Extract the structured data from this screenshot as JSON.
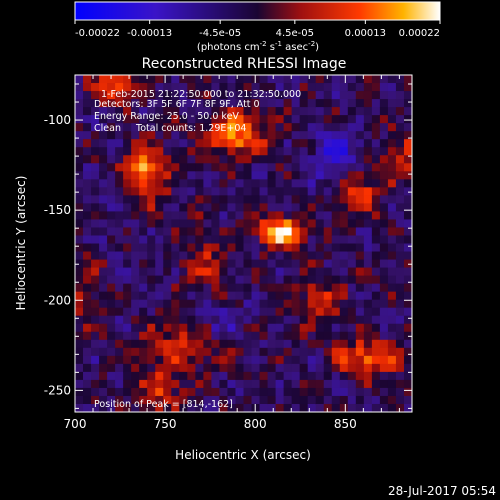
{
  "chart_data": {
    "type": "heatmap",
    "title": "Reconstructed RHESSI Image",
    "xlabel": "Heliocentric X (arcsec)",
    "ylabel": "Heliocentric Y (arcsec)",
    "xlim": [
      700,
      887
    ],
    "ylim": [
      -262,
      -75
    ],
    "x_ticks": [
      700,
      750,
      800,
      850
    ],
    "y_ticks": [
      -100,
      -150,
      -200,
      -250
    ],
    "colorbar": {
      "ticks": [
        "-0.00022",
        "-0.00013",
        "-4.5e-05",
        "4.5e-05",
        "0.00013",
        "0.00022"
      ],
      "range": [
        -0.00022,
        0.00022
      ],
      "unit_prefix": "(photons cm",
      "unit_exp1": "-2",
      "unit_mid": " s",
      "unit_exp2": "-1",
      "unit_mid2": " asec",
      "unit_exp3": "-2",
      "unit_suffix": ")"
    },
    "annotations": [
      "1-Feb-2015 21:22:50.000 to 21:32:50.000",
      "Detectors: 3F 5F 6F 7F 8F 9F, Att 0",
      "Energy Range: 25.0 - 50.0 keV",
      "Clean     Total counts: 1.29E+04"
    ],
    "peak_label": "Position of Peak = [814,-162]",
    "peak": [
      814,
      -162
    ],
    "sources": [
      {
        "x": 814,
        "y": -162,
        "amp": 0.00022,
        "sx": 9,
        "sy": 6
      },
      {
        "x": 738,
        "y": -130,
        "amp": 0.00019,
        "sx": 9,
        "sy": 11
      },
      {
        "x": 790,
        "y": -108,
        "amp": 0.00016,
        "sx": 12,
        "sy": 9
      },
      {
        "x": 722,
        "y": -80,
        "amp": 0.00015,
        "sx": 9,
        "sy": 7
      },
      {
        "x": 862,
        "y": -232,
        "amp": 0.00016,
        "sx": 12,
        "sy": 7
      },
      {
        "x": 858,
        "y": -140,
        "amp": 0.00012,
        "sx": 9,
        "sy": 9
      },
      {
        "x": 760,
        "y": -225,
        "amp": 0.00011,
        "sx": 15,
        "sy": 9
      },
      {
        "x": 748,
        "y": -250,
        "amp": 0.0001,
        "sx": 9,
        "sy": 9
      },
      {
        "x": 882,
        "y": -120,
        "amp": 0.0001,
        "sx": 7,
        "sy": 9
      },
      {
        "x": 835,
        "y": -200,
        "amp": 9e-05,
        "sx": 10,
        "sy": 10
      },
      {
        "x": 772,
        "y": -178,
        "amp": 8e-05,
        "sx": 9,
        "sy": 12
      },
      {
        "x": 705,
        "y": -195,
        "amp": 6e-05,
        "sx": 7,
        "sy": 14
      },
      {
        "x": 845,
        "y": -120,
        "amp": -0.00013,
        "sx": 9,
        "sy": 9
      },
      {
        "x": 800,
        "y": -165,
        "amp": -2e-05,
        "sx": 5,
        "sy": 5
      },
      {
        "x": 780,
        "y": -212,
        "amp": -7e-05,
        "sx": 9,
        "sy": 8
      },
      {
        "x": 722,
        "y": -140,
        "amp": -5e-05,
        "sx": 8,
        "sy": 12
      }
    ],
    "grid": false,
    "legend": "colorbar-top"
  },
  "footer": {
    "timestamp": "28-Jul-2017 05:54"
  }
}
